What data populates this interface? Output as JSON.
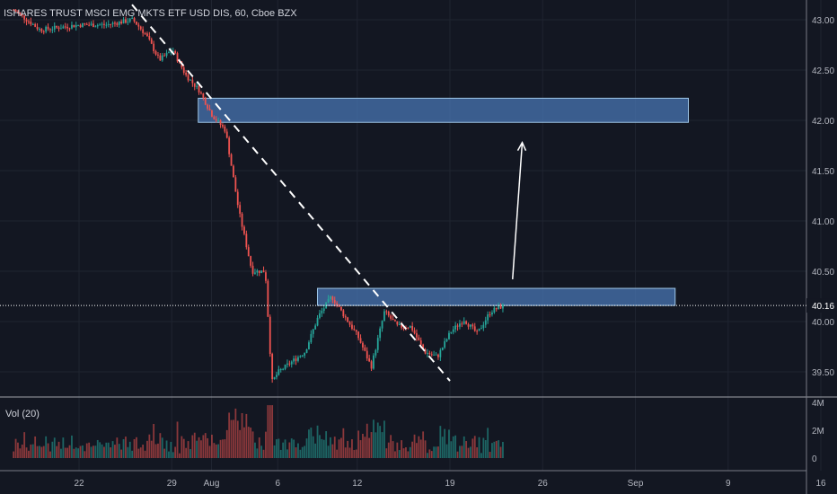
{
  "colors": {
    "background": "#131722",
    "grid": "#1f2430",
    "up": "#26a69a",
    "down": "#ef5350",
    "zone_fill": "#4a78b8",
    "zone_border": "#9fc7e8",
    "axis_text": "#b2b5be",
    "price_line": "#ffffff"
  },
  "header": {
    "title": "ISHARES TRUST MSCI EMG MKTS ETF USD DIS, 60, Cboe BZX",
    "volume_label": "Vol (20)"
  },
  "chart_data": {
    "type": "candlestick",
    "title": "ISHARES TRUST MSCI EMG MKTS ETF USD DIS, 60, Cboe BZX",
    "x_tick_labels": [
      "22",
      "29",
      "Aug",
      "6",
      "12",
      "19",
      "26",
      "Sep",
      "9",
      "16"
    ],
    "y_tick_labels": [
      "43.00",
      "42.50",
      "42.00",
      "41.50",
      "41.00",
      "40.50",
      "40.00",
      "39.50"
    ],
    "ylim": [
      39.4,
      43.15
    ],
    "current_price": 40.16,
    "current_price_label": "40.16",
    "volume_tick_labels": [
      "4M",
      "2M",
      "0"
    ],
    "volume_ylim": [
      0,
      4
    ],
    "resistance_zones": [
      {
        "date_start": "2019-07-31",
        "date_end": "2019-09-06",
        "low": 41.98,
        "high": 42.22
      },
      {
        "date_start": "2019-08-09",
        "date_end": "2019-09-05",
        "low": 40.16,
        "high": 40.33
      }
    ],
    "trendline": {
      "start": [
        "2019-07-26",
        43.15
      ],
      "end": [
        "2019-08-19",
        39.41
      ]
    },
    "projection_arrow": {
      "from": [
        "2019-08-24",
        40.42
      ],
      "to": [
        "2019-08-25",
        41.78
      ]
    },
    "price_path": [
      [
        "2019-07-17",
        43.1
      ],
      [
        "2019-07-19",
        42.9
      ],
      [
        "2019-07-22",
        42.95
      ],
      [
        "2019-07-24",
        42.95
      ],
      [
        "2019-07-26",
        43.0
      ],
      [
        "2019-07-27",
        42.85
      ],
      [
        "2019-07-28",
        42.6
      ],
      [
        "2019-07-29",
        42.7
      ],
      [
        "2019-07-30",
        42.45
      ],
      [
        "2019-07-31",
        42.3
      ],
      [
        "2019-08-01",
        42.05
      ],
      [
        "2019-08-02",
        41.9
      ],
      [
        "2019-08-03",
        41.1
      ],
      [
        "2019-08-04",
        40.5
      ],
      [
        "2019-08-05",
        40.5
      ],
      [
        "2019-08-05.5",
        39.4
      ],
      [
        "2019-08-06",
        39.5
      ],
      [
        "2019-08-07",
        39.6
      ],
      [
        "2019-08-08",
        39.7
      ],
      [
        "2019-08-09",
        40.05
      ],
      [
        "2019-08-10",
        40.25
      ],
      [
        "2019-08-11",
        40.05
      ],
      [
        "2019-08-12",
        39.85
      ],
      [
        "2019-08-13",
        39.55
      ],
      [
        "2019-08-14",
        40.1
      ],
      [
        "2019-08-15",
        39.95
      ],
      [
        "2019-08-16",
        39.95
      ],
      [
        "2019-08-17",
        39.7
      ],
      [
        "2019-08-18",
        39.65
      ],
      [
        "2019-08-19",
        39.9
      ],
      [
        "2019-08-20",
        40.02
      ],
      [
        "2019-08-21",
        39.88
      ],
      [
        "2019-08-22",
        40.1
      ],
      [
        "2019-08-23",
        40.16
      ]
    ]
  }
}
